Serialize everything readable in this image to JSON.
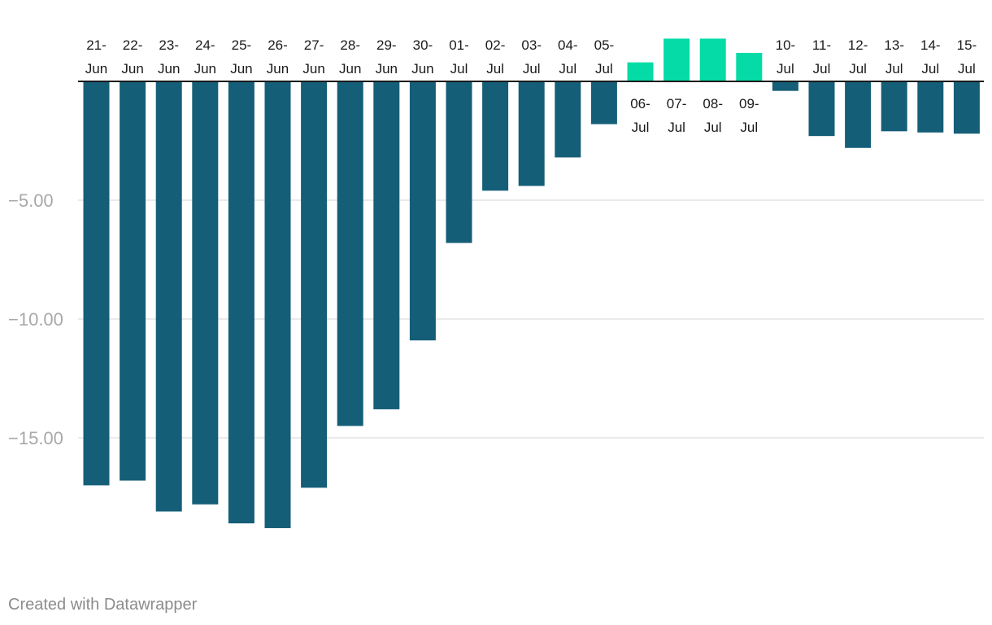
{
  "chart_data": {
    "type": "bar",
    "title": "",
    "xlabel": "",
    "ylabel": "",
    "ylim": [
      -19.2,
      1.8
    ],
    "yticks": [
      -5,
      -10,
      -15
    ],
    "ytick_labels": [
      "−5.00",
      "−10.00",
      "−15.00"
    ],
    "grid": true,
    "categories": [
      "21-Jun",
      "22-Jun",
      "23-Jun",
      "24-Jun",
      "25-Jun",
      "26-Jun",
      "27-Jun",
      "28-Jun",
      "29-Jun",
      "30-Jun",
      "01-Jul",
      "02-Jul",
      "03-Jul",
      "04-Jul",
      "05-Jul",
      "06-Jul",
      "07-Jul",
      "08-Jul",
      "09-Jul",
      "10-Jul",
      "11-Jul",
      "12-Jul",
      "13-Jul",
      "14-Jul",
      "15-Jul"
    ],
    "values": [
      -17.0,
      -16.8,
      -18.1,
      -17.8,
      -18.6,
      -18.8,
      -17.1,
      -14.5,
      -13.8,
      -10.9,
      -6.8,
      -4.6,
      -4.4,
      -3.2,
      -1.8,
      0.8,
      1.8,
      1.8,
      1.2,
      -0.4,
      -2.3,
      -2.8,
      -2.1,
      -2.15,
      -2.2
    ],
    "colors": {
      "negative": "#155e78",
      "positive": "#04dba6"
    }
  },
  "footer": {
    "credit": "Created with Datawrapper"
  }
}
